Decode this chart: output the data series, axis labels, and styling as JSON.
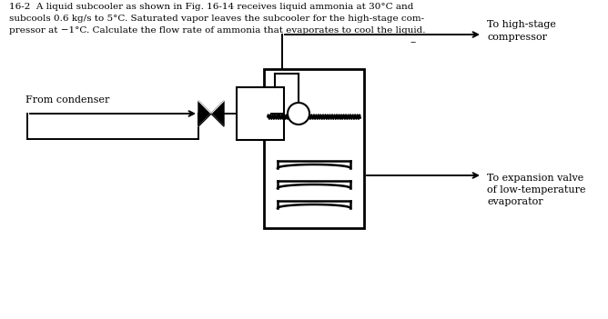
{
  "title_lines": [
    "16-2  A liquid subcooler as shown in Fig. 16-14 receives liquid ammonia at 30°C and",
    "subcools 0.6 kg/s to 5°C. Saturated vapor leaves the subcooler for the high-stage com-",
    "pressor at −1°C. Calculate the flow rate of ammonia that evaporates to cool the liquid."
  ],
  "bg_color": "#ffffff",
  "line_color": "#000000",
  "label_from_condenser": "From condenser",
  "label_high_stage": "To high-stage\ncompressor",
  "label_expansion": "To expansion valve\nof low-temperature\nevaporator"
}
